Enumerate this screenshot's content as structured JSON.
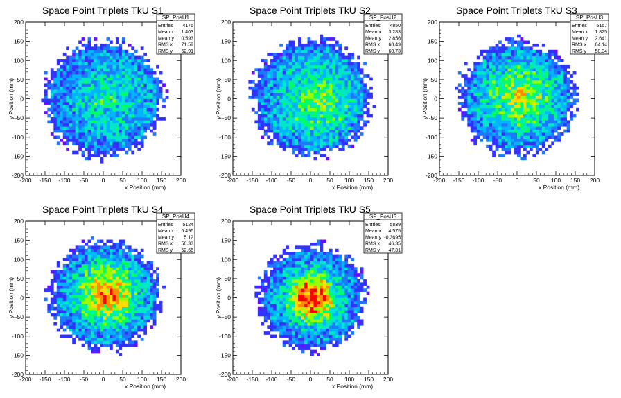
{
  "chart_data": [
    {
      "type": "heatmap",
      "title": "Space Point Triplets TkU S1",
      "xlabel": "x Position (mm)",
      "ylabel": "y Position (mm)",
      "xlim": [
        -200,
        200
      ],
      "ylim": [
        -200,
        200
      ],
      "xticks": [
        "-200",
        "-150",
        "-100",
        "-50",
        "0",
        "50",
        "100",
        "150",
        "200"
      ],
      "yticks": [
        "-200",
        "-150",
        "-100",
        "-50",
        "0",
        "50",
        "100",
        "150",
        "200"
      ],
      "stats": {
        "name": "SP_PosU1",
        "rows": [
          [
            "Entries",
            "4176"
          ],
          [
            "Mean x",
            "1.403"
          ],
          [
            "Mean y",
            "0.593"
          ],
          [
            "RMS x",
            "71.59"
          ],
          [
            "RMS y",
            "62.91"
          ]
        ]
      },
      "mean_x": 1.403,
      "mean_y": 0.593,
      "rms_x": 71.59,
      "rms_y": 62.91,
      "radius": 160,
      "peak": [
        40,
        -10
      ],
      "concentration": 0.15
    },
    {
      "type": "heatmap",
      "title": "Space Point Triplets TkU S2",
      "xlabel": "x Position (mm)",
      "ylabel": "y Position (mm)",
      "xlim": [
        -200,
        200
      ],
      "ylim": [
        -200,
        200
      ],
      "xticks": [
        "-200",
        "-150",
        "-100",
        "-50",
        "0",
        "50",
        "100",
        "150",
        "200"
      ],
      "yticks": [
        "-200",
        "-150",
        "-100",
        "-50",
        "0",
        "50",
        "100",
        "150",
        "200"
      ],
      "stats": {
        "name": "SP_PosU2",
        "rows": [
          [
            "Entries",
            "4850"
          ],
          [
            "Mean x",
            "3.283"
          ],
          [
            "Mean y",
            "2.856"
          ],
          [
            "RMS x",
            "68.49"
          ],
          [
            "RMS y",
            "60.73"
          ]
        ]
      },
      "mean_x": 3.283,
      "mean_y": 2.856,
      "rms_x": 68.49,
      "rms_y": 60.73,
      "radius": 160,
      "peak": [
        30,
        -10
      ],
      "concentration": 0.3
    },
    {
      "type": "heatmap",
      "title": "Space Point Triplets TkU S3",
      "xlabel": "x Position (mm)",
      "ylabel": "y Position (mm)",
      "xlim": [
        -200,
        200
      ],
      "ylim": [
        -200,
        200
      ],
      "xticks": [
        "-200",
        "-150",
        "-100",
        "-50",
        "0",
        "50",
        "100",
        "150",
        "200"
      ],
      "yticks": [
        "-200",
        "-150",
        "-100",
        "-50",
        "0",
        "50",
        "100",
        "150",
        "200"
      ],
      "stats": {
        "name": "SP_PosU3",
        "rows": [
          [
            "Entries",
            "5167"
          ],
          [
            "Mean x",
            "1.825"
          ],
          [
            "Mean y",
            "2.641"
          ],
          [
            "RMS x",
            "64.14"
          ],
          [
            "RMS y",
            "58.34"
          ]
        ]
      },
      "mean_x": 1.825,
      "mean_y": 2.641,
      "rms_x": 64.14,
      "rms_y": 58.34,
      "radius": 155,
      "peak": [
        10,
        5
      ],
      "concentration": 0.4
    },
    {
      "type": "heatmap",
      "title": "Space Point Triplets TkU S4",
      "xlabel": "x Position (mm)",
      "ylabel": "y Position (mm)",
      "xlim": [
        -200,
        200
      ],
      "ylim": [
        -200,
        200
      ],
      "xticks": [
        "-200",
        "-150",
        "-100",
        "-50",
        "0",
        "50",
        "100",
        "150",
        "200"
      ],
      "yticks": [
        "-200",
        "-150",
        "-100",
        "-50",
        "0",
        "50",
        "100",
        "150",
        "200"
      ],
      "stats": {
        "name": "SP_PosU4",
        "rows": [
          [
            "Entries",
            "5124"
          ],
          [
            "Mean x",
            "5.496"
          ],
          [
            "Mean y",
            "5.12"
          ],
          [
            "RMS x",
            "56.33"
          ],
          [
            "RMS y",
            "52.66"
          ]
        ]
      },
      "mean_x": 5.496,
      "mean_y": 5.12,
      "rms_x": 56.33,
      "rms_y": 52.66,
      "radius": 150,
      "peak": [
        10,
        10
      ],
      "concentration": 0.6
    },
    {
      "type": "heatmap",
      "title": "Space Point Triplets TkU S5",
      "xlabel": "x Position (mm)",
      "ylabel": "y Position (mm)",
      "xlim": [
        -200,
        200
      ],
      "ylim": [
        -200,
        200
      ],
      "xticks": [
        "-200",
        "-150",
        "-100",
        "-50",
        "0",
        "50",
        "100",
        "150",
        "200"
      ],
      "yticks": [
        "-200",
        "-150",
        "-100",
        "-50",
        "0",
        "50",
        "100",
        "150",
        "200"
      ],
      "stats": {
        "name": "SP_PosU5",
        "rows": [
          [
            "Entries",
            "5839"
          ],
          [
            "Mean x",
            "4.575"
          ],
          [
            "Mean y",
            "-0.3695"
          ],
          [
            "RMS x",
            "46.35"
          ],
          [
            "RMS y",
            "47.81"
          ]
        ]
      },
      "mean_x": 4.575,
      "mean_y": -0.3695,
      "rms_x": 46.35,
      "rms_y": 47.81,
      "radius": 145,
      "peak": [
        5,
        0
      ],
      "concentration": 0.85
    }
  ],
  "colors": {
    "palette": [
      "#6a0dff",
      "#3232ff",
      "#1e78ff",
      "#00b4ff",
      "#00e6c8",
      "#00ff64",
      "#96ff00",
      "#ffdc00",
      "#ff8c00",
      "#ff0000"
    ],
    "frame": "#000000",
    "background": "#ffffff"
  }
}
